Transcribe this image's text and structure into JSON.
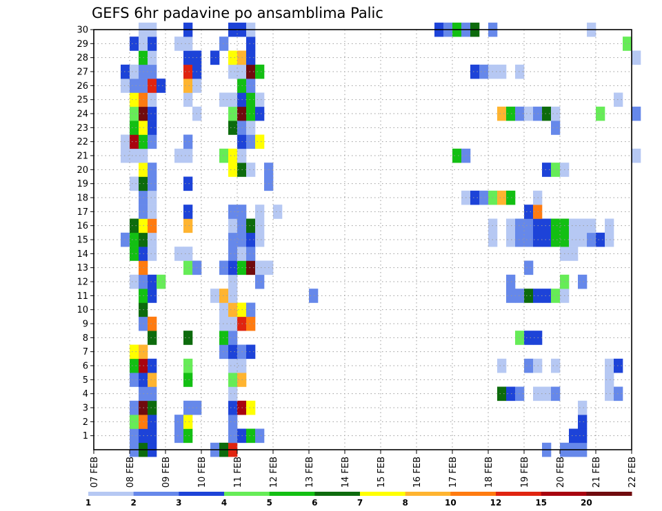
{
  "chart_data": {
    "type": "heatmap",
    "title": "GEFS 6hr padavine po ansamblima Palic",
    "x_ticks": [
      "07 FEB",
      "08 FEB",
      "09 FEB",
      "10 FEB",
      "11 FEB",
      "12 FEB",
      "13 FEB",
      "14 FEB",
      "15 FEB",
      "16 FEB",
      "17 FEB",
      "18 FEB",
      "19 FEB",
      "20 FEB",
      "21 FEB",
      "22 FEB"
    ],
    "y_ticks": [
      1,
      2,
      3,
      4,
      5,
      6,
      7,
      8,
      9,
      10,
      11,
      12,
      13,
      14,
      15,
      16,
      17,
      18,
      19,
      20,
      21,
      22,
      23,
      24,
      25,
      26,
      27,
      28,
      29,
      30
    ],
    "xlim": [
      0,
      15
    ],
    "ylim": [
      0,
      30
    ],
    "time_step": "6hr",
    "grid": true,
    "colorbar": {
      "labels": [
        "1",
        "2",
        "3",
        "4",
        "5",
        "6",
        "7",
        "8",
        "10",
        "12",
        "15",
        "20"
      ],
      "colors": [
        "#b6c8f3",
        "#6688ea",
        "#1d43d8",
        "#66ec57",
        "#13bf13",
        "#0d6b0d",
        "#ffff00",
        "#ffb430",
        "#ff7b10",
        "#e02410",
        "#a8030f",
        "#700b0e"
      ]
    },
    "cells": [
      [
        1,
        0,
        1
      ],
      [
        1.25,
        0,
        5
      ],
      [
        1.5,
        0,
        2
      ],
      [
        3.25,
        0,
        1
      ],
      [
        3.5,
        0,
        5
      ],
      [
        3.75,
        0,
        9
      ],
      [
        12.5,
        0,
        1
      ],
      [
        13,
        0,
        1
      ],
      [
        13.25,
        0,
        1
      ],
      [
        13.5,
        0,
        1
      ],
      [
        1,
        1,
        1
      ],
      [
        1.25,
        1,
        2
      ],
      [
        1.5,
        1,
        2
      ],
      [
        2.25,
        1,
        1
      ],
      [
        2.5,
        1,
        4
      ],
      [
        3.75,
        1,
        1
      ],
      [
        3.75,
        1,
        1
      ],
      [
        4,
        1,
        2
      ],
      [
        4.25,
        1,
        4
      ],
      [
        4.5,
        1,
        1
      ],
      [
        13.25,
        1,
        2
      ],
      [
        13.5,
        1,
        2
      ],
      [
        1,
        2,
        3
      ],
      [
        1.25,
        2,
        8
      ],
      [
        1.5,
        2,
        2
      ],
      [
        2.25,
        2,
        1
      ],
      [
        2.5,
        2,
        6
      ],
      [
        3.75,
        2,
        1
      ],
      [
        13.5,
        2,
        2
      ],
      [
        1,
        3,
        1
      ],
      [
        1.25,
        3,
        11
      ],
      [
        1.5,
        3,
        5
      ],
      [
        2.5,
        3,
        1
      ],
      [
        2.75,
        3,
        1
      ],
      [
        3.75,
        3,
        2
      ],
      [
        4,
        3,
        10
      ],
      [
        4.25,
        3,
        6
      ],
      [
        13.5,
        3,
        0
      ],
      [
        1.25,
        4,
        1
      ],
      [
        1.5,
        4,
        1
      ],
      [
        3.75,
        4,
        0
      ],
      [
        11.25,
        4,
        5
      ],
      [
        11.5,
        4,
        2
      ],
      [
        11.75,
        4,
        1
      ],
      [
        12.25,
        4,
        0
      ],
      [
        12.5,
        4,
        0
      ],
      [
        12.75,
        4,
        1
      ],
      [
        14.25,
        4,
        0
      ],
      [
        14.5,
        4,
        1
      ],
      [
        1,
        5,
        1
      ],
      [
        1.25,
        5,
        2
      ],
      [
        1.5,
        5,
        7
      ],
      [
        2.5,
        5,
        4
      ],
      [
        3.75,
        5,
        3
      ],
      [
        4,
        5,
        7
      ],
      [
        14.25,
        5,
        0
      ],
      [
        1,
        6,
        4
      ],
      [
        1.25,
        6,
        10
      ],
      [
        1.5,
        6,
        2
      ],
      [
        2.5,
        6,
        3
      ],
      [
        3.75,
        6,
        0
      ],
      [
        4,
        6,
        0
      ],
      [
        11.25,
        6,
        0
      ],
      [
        12,
        6,
        1
      ],
      [
        12.25,
        6,
        0
      ],
      [
        12.75,
        6,
        0
      ],
      [
        14.25,
        6,
        0
      ],
      [
        14.5,
        6,
        2
      ],
      [
        1,
        7,
        6
      ],
      [
        1.25,
        7,
        7
      ],
      [
        3.5,
        7,
        1
      ],
      [
        3.75,
        7,
        2
      ],
      [
        4,
        7,
        1
      ],
      [
        4.25,
        7,
        2
      ],
      [
        1.5,
        8,
        5
      ],
      [
        2.5,
        8,
        5
      ],
      [
        3.5,
        8,
        4
      ],
      [
        3.75,
        8,
        1
      ],
      [
        11.75,
        8,
        3
      ],
      [
        12,
        8,
        2
      ],
      [
        12.25,
        8,
        2
      ],
      [
        1.25,
        9,
        1
      ],
      [
        1.5,
        9,
        8
      ],
      [
        3.5,
        9,
        0
      ],
      [
        3.75,
        9,
        0
      ],
      [
        4,
        9,
        9
      ],
      [
        4.25,
        9,
        8
      ],
      [
        1.25,
        10,
        5
      ],
      [
        3.5,
        10,
        0
      ],
      [
        3.75,
        10,
        7
      ],
      [
        4,
        10,
        6
      ],
      [
        4.25,
        10,
        1
      ],
      [
        1.25,
        11,
        4
      ],
      [
        1.5,
        11,
        2
      ],
      [
        3.25,
        11,
        0
      ],
      [
        3.5,
        11,
        7
      ],
      [
        3.75,
        11,
        0
      ],
      [
        6,
        11,
        1
      ],
      [
        11.5,
        11,
        1
      ],
      [
        11.75,
        11,
        1
      ],
      [
        12,
        11,
        5
      ],
      [
        12.25,
        11,
        2
      ],
      [
        12.5,
        11,
        2
      ],
      [
        12.75,
        11,
        3
      ],
      [
        13,
        11,
        0
      ],
      [
        1,
        12,
        0
      ],
      [
        1.25,
        12,
        1
      ],
      [
        1.5,
        12,
        2
      ],
      [
        1.75,
        12,
        3
      ],
      [
        3.75,
        12,
        0
      ],
      [
        4.5,
        12,
        1
      ],
      [
        11.5,
        12,
        1
      ],
      [
        13,
        12,
        3
      ],
      [
        13.5,
        12,
        1
      ],
      [
        1.25,
        13,
        8
      ],
      [
        2.5,
        13,
        3
      ],
      [
        2.75,
        13,
        1
      ],
      [
        3.5,
        13,
        1
      ],
      [
        3.75,
        13,
        2
      ],
      [
        4,
        13,
        4
      ],
      [
        4.25,
        13,
        11
      ],
      [
        4.5,
        13,
        0
      ],
      [
        4.75,
        13,
        0
      ],
      [
        12,
        13,
        1
      ],
      [
        1,
        14,
        4
      ],
      [
        1.25,
        14,
        2
      ],
      [
        1.5,
        14,
        0
      ],
      [
        2.25,
        14,
        0
      ],
      [
        2.5,
        14,
        0
      ],
      [
        3.75,
        14,
        1
      ],
      [
        4,
        14,
        0
      ],
      [
        4.25,
        14,
        1
      ],
      [
        13,
        14,
        0
      ],
      [
        13.25,
        14,
        0
      ],
      [
        0.75,
        15,
        1
      ],
      [
        1,
        15,
        4
      ],
      [
        1.25,
        15,
        5
      ],
      [
        1.5,
        15,
        0
      ],
      [
        3.75,
        15,
        1
      ],
      [
        4,
        15,
        1
      ],
      [
        4.25,
        15,
        2
      ],
      [
        4.5,
        15,
        0
      ],
      [
        11,
        15,
        0
      ],
      [
        11.5,
        15,
        0
      ],
      [
        11.75,
        15,
        1
      ],
      [
        12,
        15,
        1
      ],
      [
        12.25,
        15,
        2
      ],
      [
        12.5,
        15,
        2
      ],
      [
        12.75,
        15,
        4
      ],
      [
        13,
        15,
        4
      ],
      [
        13.25,
        15,
        0
      ],
      [
        13.5,
        15,
        0
      ],
      [
        13.75,
        15,
        1
      ],
      [
        14,
        15,
        2
      ],
      [
        14.25,
        15,
        0
      ],
      [
        1,
        16,
        5
      ],
      [
        1.25,
        16,
        6
      ],
      [
        1.5,
        16,
        8
      ],
      [
        2.5,
        16,
        7
      ],
      [
        3.75,
        16,
        0
      ],
      [
        4,
        16,
        1
      ],
      [
        4.25,
        16,
        5
      ],
      [
        4.5,
        16,
        0
      ],
      [
        11,
        16,
        0
      ],
      [
        11.5,
        16,
        0
      ],
      [
        11.75,
        16,
        1
      ],
      [
        12,
        16,
        1
      ],
      [
        12.25,
        16,
        2
      ],
      [
        12.5,
        16,
        2
      ],
      [
        12.75,
        16,
        4
      ],
      [
        13,
        16,
        4
      ],
      [
        13.25,
        16,
        0
      ],
      [
        13.5,
        16,
        0
      ],
      [
        13.75,
        16,
        0
      ],
      [
        14.25,
        16,
        0
      ],
      [
        1.25,
        17,
        1
      ],
      [
        1.5,
        17,
        0
      ],
      [
        2.5,
        17,
        2
      ],
      [
        3.75,
        17,
        1
      ],
      [
        4,
        17,
        1
      ],
      [
        4.5,
        17,
        0
      ],
      [
        5,
        17,
        0
      ],
      [
        12,
        17,
        2
      ],
      [
        12.25,
        17,
        8
      ],
      [
        1.25,
        18,
        1
      ],
      [
        1.5,
        18,
        0
      ],
      [
        10.25,
        18,
        0
      ],
      [
        10.5,
        18,
        2
      ],
      [
        10.75,
        18,
        1
      ],
      [
        11,
        18,
        3
      ],
      [
        11.25,
        18,
        7
      ],
      [
        11.5,
        18,
        4
      ],
      [
        12.25,
        18,
        0
      ],
      [
        1,
        19,
        0
      ],
      [
        1.25,
        19,
        5
      ],
      [
        1.5,
        19,
        1
      ],
      [
        2.5,
        19,
        2
      ],
      [
        4.75,
        19,
        1
      ],
      [
        1.25,
        20,
        6
      ],
      [
        1.5,
        20,
        1
      ],
      [
        3.75,
        20,
        6
      ],
      [
        4,
        20,
        5
      ],
      [
        4.25,
        20,
        0
      ],
      [
        4.75,
        20,
        1
      ],
      [
        12.5,
        20,
        2
      ],
      [
        12.75,
        20,
        3
      ],
      [
        13,
        20,
        0
      ],
      [
        0.75,
        21,
        0
      ],
      [
        1,
        21,
        0
      ],
      [
        1.25,
        21,
        0
      ],
      [
        2.25,
        21,
        0
      ],
      [
        2.5,
        21,
        0
      ],
      [
        3.5,
        21,
        3
      ],
      [
        3.75,
        21,
        6
      ],
      [
        4,
        21,
        0
      ],
      [
        10,
        21,
        4
      ],
      [
        10.25,
        21,
        1
      ],
      [
        15,
        21,
        0
      ],
      [
        0.75,
        22,
        0
      ],
      [
        1,
        22,
        10
      ],
      [
        1.25,
        22,
        4
      ],
      [
        1.5,
        22,
        1
      ],
      [
        2.5,
        22,
        1
      ],
      [
        4,
        22,
        2
      ],
      [
        4.25,
        22,
        1
      ],
      [
        4.5,
        22,
        6
      ],
      [
        1,
        23,
        4
      ],
      [
        1.25,
        23,
        6
      ],
      [
        1.5,
        23,
        2
      ],
      [
        3.75,
        23,
        5
      ],
      [
        4,
        23,
        1
      ],
      [
        4.25,
        23,
        0
      ],
      [
        12.75,
        23,
        1
      ],
      [
        1,
        24,
        3
      ],
      [
        1.25,
        24,
        11
      ],
      [
        1.5,
        24,
        2
      ],
      [
        2.75,
        24,
        0
      ],
      [
        3.75,
        24,
        3
      ],
      [
        4,
        24,
        11
      ],
      [
        4.25,
        24,
        4
      ],
      [
        4.5,
        24,
        2
      ],
      [
        11.25,
        24,
        7
      ],
      [
        11.5,
        24,
        4
      ],
      [
        11.75,
        24,
        1
      ],
      [
        12,
        24,
        0
      ],
      [
        12.25,
        24,
        1
      ],
      [
        12.5,
        24,
        5
      ],
      [
        12.75,
        24,
        0
      ],
      [
        14,
        24,
        3
      ],
      [
        15,
        24,
        1
      ],
      [
        1,
        25,
        6
      ],
      [
        1.25,
        25,
        8
      ],
      [
        1.5,
        25,
        0
      ],
      [
        2.5,
        25,
        0
      ],
      [
        3.5,
        25,
        0
      ],
      [
        3.75,
        25,
        0
      ],
      [
        4,
        25,
        2
      ],
      [
        4.25,
        25,
        4
      ],
      [
        4.5,
        25,
        0
      ],
      [
        14.5,
        25,
        0
      ],
      [
        0.75,
        26,
        0
      ],
      [
        1,
        26,
        1
      ],
      [
        1.25,
        26,
        1
      ],
      [
        1.5,
        26,
        9
      ],
      [
        1.75,
        26,
        2
      ],
      [
        2.5,
        26,
        7
      ],
      [
        2.75,
        26,
        0
      ],
      [
        4,
        26,
        4
      ],
      [
        4.25,
        26,
        1
      ],
      [
        0.75,
        27,
        2
      ],
      [
        1,
        27,
        0
      ],
      [
        1.25,
        27,
        1
      ],
      [
        1.5,
        27,
        1
      ],
      [
        2.5,
        27,
        9
      ],
      [
        2.75,
        27,
        2
      ],
      [
        3.75,
        27,
        0
      ],
      [
        4,
        27,
        0
      ],
      [
        4.25,
        27,
        11
      ],
      [
        4.5,
        27,
        4
      ],
      [
        10.5,
        27,
        2
      ],
      [
        10.75,
        27,
        1
      ],
      [
        11,
        27,
        0
      ],
      [
        11.25,
        27,
        0
      ],
      [
        11.75,
        27,
        0
      ],
      [
        1.25,
        28,
        4
      ],
      [
        1.5,
        28,
        0
      ],
      [
        2.5,
        28,
        2
      ],
      [
        2.75,
        28,
        2
      ],
      [
        3.25,
        28,
        2
      ],
      [
        3.75,
        28,
        6
      ],
      [
        4,
        28,
        7
      ],
      [
        4.25,
        28,
        2
      ],
      [
        15,
        28,
        0
      ],
      [
        1,
        29,
        2
      ],
      [
        1.25,
        29,
        0
      ],
      [
        1.5,
        29,
        2
      ],
      [
        2.25,
        29,
        0
      ],
      [
        2.5,
        29,
        0
      ],
      [
        3.5,
        29,
        1
      ],
      [
        4.25,
        29,
        2
      ],
      [
        14.75,
        29,
        3
      ],
      [
        1.25,
        30,
        0
      ],
      [
        1.5,
        30,
        0
      ],
      [
        2.5,
        30,
        2
      ],
      [
        3.75,
        30,
        2
      ],
      [
        4,
        30,
        2
      ],
      [
        4.25,
        30,
        0
      ],
      [
        9.5,
        30,
        2
      ],
      [
        9.75,
        30,
        1
      ],
      [
        10,
        30,
        4
      ],
      [
        10.25,
        30,
        1
      ],
      [
        10.5,
        30,
        5
      ],
      [
        11,
        30,
        1
      ],
      [
        13.75,
        30,
        0
      ]
    ]
  }
}
